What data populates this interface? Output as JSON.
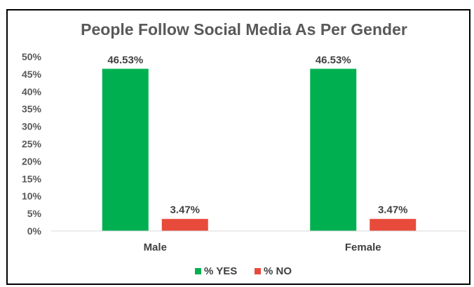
{
  "chart_data": {
    "type": "bar",
    "title": "People Follow Social Media As Per Gender",
    "categories": [
      "Male",
      "Female"
    ],
    "series": [
      {
        "name": "% YES",
        "color": "#00b050",
        "values": [
          46.53,
          46.53
        ],
        "labels": [
          "46.53%",
          "46.53%"
        ]
      },
      {
        "name": "% NO",
        "color": "#e84a3b",
        "values": [
          3.47,
          3.47
        ],
        "labels": [
          "3.47%",
          "3.47%"
        ]
      }
    ],
    "ylim": [
      0,
      50
    ],
    "yticks": [
      "0%",
      "5%",
      "10%",
      "15%",
      "20%",
      "25%",
      "30%",
      "35%",
      "40%",
      "45%",
      "50%"
    ],
    "grid": false,
    "legend_position": "bottom"
  }
}
